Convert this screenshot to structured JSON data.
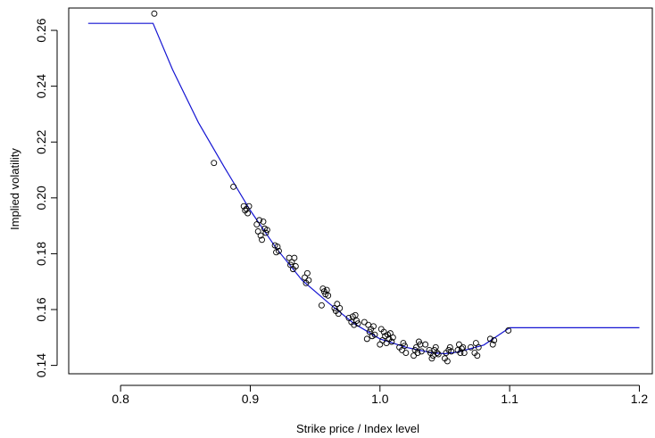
{
  "chart_data": {
    "type": "scatter",
    "title": "",
    "xlabel": "Strike price / Index level",
    "ylabel": "Implied volatility",
    "xlim": [
      0.76,
      1.21
    ],
    "ylim": [
      0.137,
      0.268
    ],
    "x_ticks": [
      0.8,
      0.9,
      1.0,
      1.1,
      1.2
    ],
    "x_tick_labels": [
      "0.8",
      "0.9",
      "1.0",
      "1.1",
      "1.2"
    ],
    "y_ticks": [
      0.14,
      0.16,
      0.18,
      0.2,
      0.22,
      0.24,
      0.26
    ],
    "y_tick_labels": [
      "0.14",
      "0.16",
      "0.18",
      "0.20",
      "0.22",
      "0.24",
      "0.26"
    ],
    "grid": false,
    "legend": "none",
    "line_color": "#1414d2",
    "point_color": "#000000",
    "series": [
      {
        "type": "line",
        "x": [
          0.775,
          0.825,
          0.84,
          0.86,
          0.88,
          0.9,
          0.92,
          0.94,
          0.96,
          0.98,
          1.0,
          1.02,
          1.04,
          1.05,
          1.06,
          1.08,
          1.1,
          1.2
        ],
        "y": [
          0.2625,
          0.2625,
          0.246,
          0.227,
          0.211,
          0.1955,
          0.182,
          0.1705,
          0.1625,
          0.155,
          0.1495,
          0.1465,
          0.1445,
          0.1442,
          0.1448,
          0.1473,
          0.1535,
          0.1535
        ]
      },
      {
        "type": "scatter",
        "x": [
          0.826,
          0.872,
          0.887,
          0.895,
          0.896,
          0.897,
          0.898,
          0.899,
          0.905,
          0.906,
          0.907,
          0.908,
          0.909,
          0.91,
          0.911,
          0.912,
          0.913,
          0.919,
          0.92,
          0.921,
          0.922,
          0.93,
          0.931,
          0.932,
          0.933,
          0.934,
          0.935,
          0.942,
          0.943,
          0.944,
          0.945,
          0.955,
          0.956,
          0.957,
          0.958,
          0.959,
          0.96,
          0.965,
          0.966,
          0.967,
          0.968,
          0.969,
          0.976,
          0.978,
          0.979,
          0.98,
          0.981,
          0.982,
          0.983,
          0.988,
          0.99,
          0.991,
          0.992,
          0.993,
          0.994,
          0.995,
          0.996,
          1.0,
          1.001,
          1.002,
          1.003,
          1.004,
          1.005,
          1.006,
          1.007,
          1.008,
          1.009,
          1.01,
          1.015,
          1.017,
          1.018,
          1.019,
          1.02,
          1.026,
          1.027,
          1.028,
          1.029,
          1.03,
          1.031,
          1.032,
          1.035,
          1.038,
          1.039,
          1.04,
          1.041,
          1.042,
          1.043,
          1.044,
          1.045,
          1.05,
          1.051,
          1.052,
          1.053,
          1.054,
          1.055,
          1.06,
          1.061,
          1.062,
          1.063,
          1.064,
          1.065,
          1.07,
          1.073,
          1.074,
          1.075,
          1.076,
          1.085,
          1.087,
          1.088,
          1.099
        ],
        "y": [
          0.266,
          0.2125,
          0.204,
          0.197,
          0.1955,
          0.196,
          0.1945,
          0.197,
          0.1905,
          0.188,
          0.192,
          0.1865,
          0.185,
          0.1915,
          0.189,
          0.1875,
          0.1885,
          0.183,
          0.1805,
          0.1825,
          0.181,
          0.1785,
          0.176,
          0.177,
          0.1745,
          0.1785,
          0.1755,
          0.1715,
          0.1695,
          0.173,
          0.1705,
          0.1615,
          0.1675,
          0.1665,
          0.1655,
          0.167,
          0.165,
          0.1605,
          0.1595,
          0.162,
          0.1585,
          0.1605,
          0.157,
          0.1555,
          0.1575,
          0.1545,
          0.158,
          0.156,
          0.155,
          0.1555,
          0.1495,
          0.1545,
          0.152,
          0.153,
          0.1505,
          0.154,
          0.151,
          0.1475,
          0.153,
          0.149,
          0.152,
          0.1505,
          0.148,
          0.151,
          0.1495,
          0.1515,
          0.1485,
          0.15,
          0.1465,
          0.1455,
          0.148,
          0.147,
          0.1445,
          0.1435,
          0.1455,
          0.1465,
          0.1445,
          0.1485,
          0.1475,
          0.145,
          0.1475,
          0.1455,
          0.1445,
          0.1425,
          0.1435,
          0.1455,
          0.1465,
          0.1445,
          0.144,
          0.1425,
          0.1445,
          0.1415,
          0.1455,
          0.1465,
          0.145,
          0.1455,
          0.1475,
          0.1445,
          0.146,
          0.1465,
          0.1445,
          0.1465,
          0.1445,
          0.148,
          0.1435,
          0.1465,
          0.1495,
          0.1475,
          0.149,
          0.1525
        ]
      }
    ]
  }
}
